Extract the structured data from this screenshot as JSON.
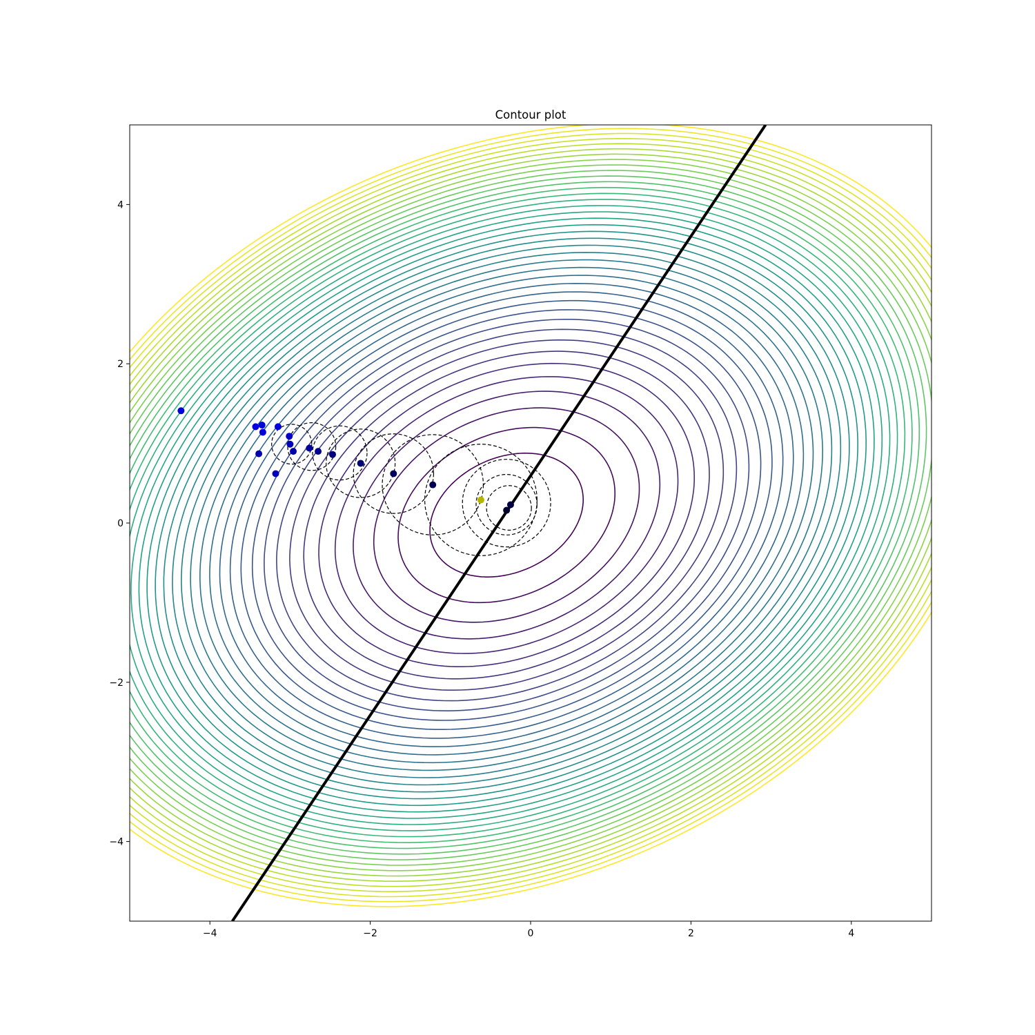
{
  "chart_data": {
    "type": "contour",
    "title": "Contour plot",
    "xlabel": "",
    "ylabel": "",
    "xlim": [
      -5,
      5
    ],
    "ylim": [
      -5,
      5
    ],
    "x_ticks": [
      -4,
      -2,
      0,
      2,
      4
    ],
    "y_ticks": [
      -4,
      -2,
      0,
      2,
      4
    ],
    "x_tick_labels": [
      "−4",
      "−2",
      "0",
      "2",
      "4"
    ],
    "y_tick_labels": [
      "−4",
      "−2",
      "0",
      "2",
      "4"
    ],
    "grid": false,
    "colormap": "viridis",
    "contours": {
      "center": [
        -0.3,
        0.1
      ],
      "axis_angle_deg": 25,
      "semi_axes_per_level": [
        1.0,
        0.72
      ],
      "levels": 40
    },
    "line": {
      "color": "#000000",
      "points": [
        [
          -3.72,
          -5.0
        ],
        [
          2.93,
          5.0
        ]
      ]
    },
    "points": [
      {
        "x": -4.36,
        "y": 1.41,
        "color": "#0000dd"
      },
      {
        "x": -3.43,
        "y": 1.21,
        "color": "#0000dd"
      },
      {
        "x": -3.35,
        "y": 1.23,
        "color": "#0000dd"
      },
      {
        "x": -3.34,
        "y": 1.14,
        "color": "#0000dd"
      },
      {
        "x": -3.15,
        "y": 1.21,
        "color": "#0000dd"
      },
      {
        "x": -3.01,
        "y": 1.09,
        "color": "#0000cc"
      },
      {
        "x": -3.0,
        "y": 0.99,
        "color": "#0000bb"
      },
      {
        "x": -2.96,
        "y": 0.9,
        "color": "#0000aa"
      },
      {
        "x": -3.39,
        "y": 0.87,
        "color": "#0000aa"
      },
      {
        "x": -3.18,
        "y": 0.62,
        "color": "#0000bb"
      },
      {
        "x": -2.76,
        "y": 0.94,
        "color": "#00009a"
      },
      {
        "x": -2.65,
        "y": 0.9,
        "color": "#000090"
      },
      {
        "x": -2.47,
        "y": 0.86,
        "color": "#000080"
      },
      {
        "x": -2.12,
        "y": 0.75,
        "color": "#000070"
      },
      {
        "x": -1.71,
        "y": 0.62,
        "color": "#000060"
      },
      {
        "x": -1.22,
        "y": 0.48,
        "color": "#000050"
      },
      {
        "x": -0.25,
        "y": 0.23,
        "color": "#000040"
      },
      {
        "x": -0.3,
        "y": 0.16,
        "color": "#000030"
      },
      {
        "x": -0.62,
        "y": 0.29,
        "color": "#b5b500"
      }
    ],
    "circles": [
      {
        "x": -2.98,
        "y": 0.99,
        "r": 0.25
      },
      {
        "x": -2.73,
        "y": 0.96,
        "r": 0.3
      },
      {
        "x": -2.38,
        "y": 0.88,
        "r": 0.34
      },
      {
        "x": -2.12,
        "y": 0.75,
        "r": 0.43
      },
      {
        "x": -1.71,
        "y": 0.62,
        "r": 0.5
      },
      {
        "x": -1.22,
        "y": 0.48,
        "r": 0.63
      },
      {
        "x": -0.62,
        "y": 0.29,
        "r": 0.7
      },
      {
        "x": -0.3,
        "y": 0.25,
        "r": 0.55
      },
      {
        "x": -0.3,
        "y": 0.23,
        "r": 0.38
      },
      {
        "x": -0.27,
        "y": 0.19,
        "r": 0.28
      }
    ]
  }
}
